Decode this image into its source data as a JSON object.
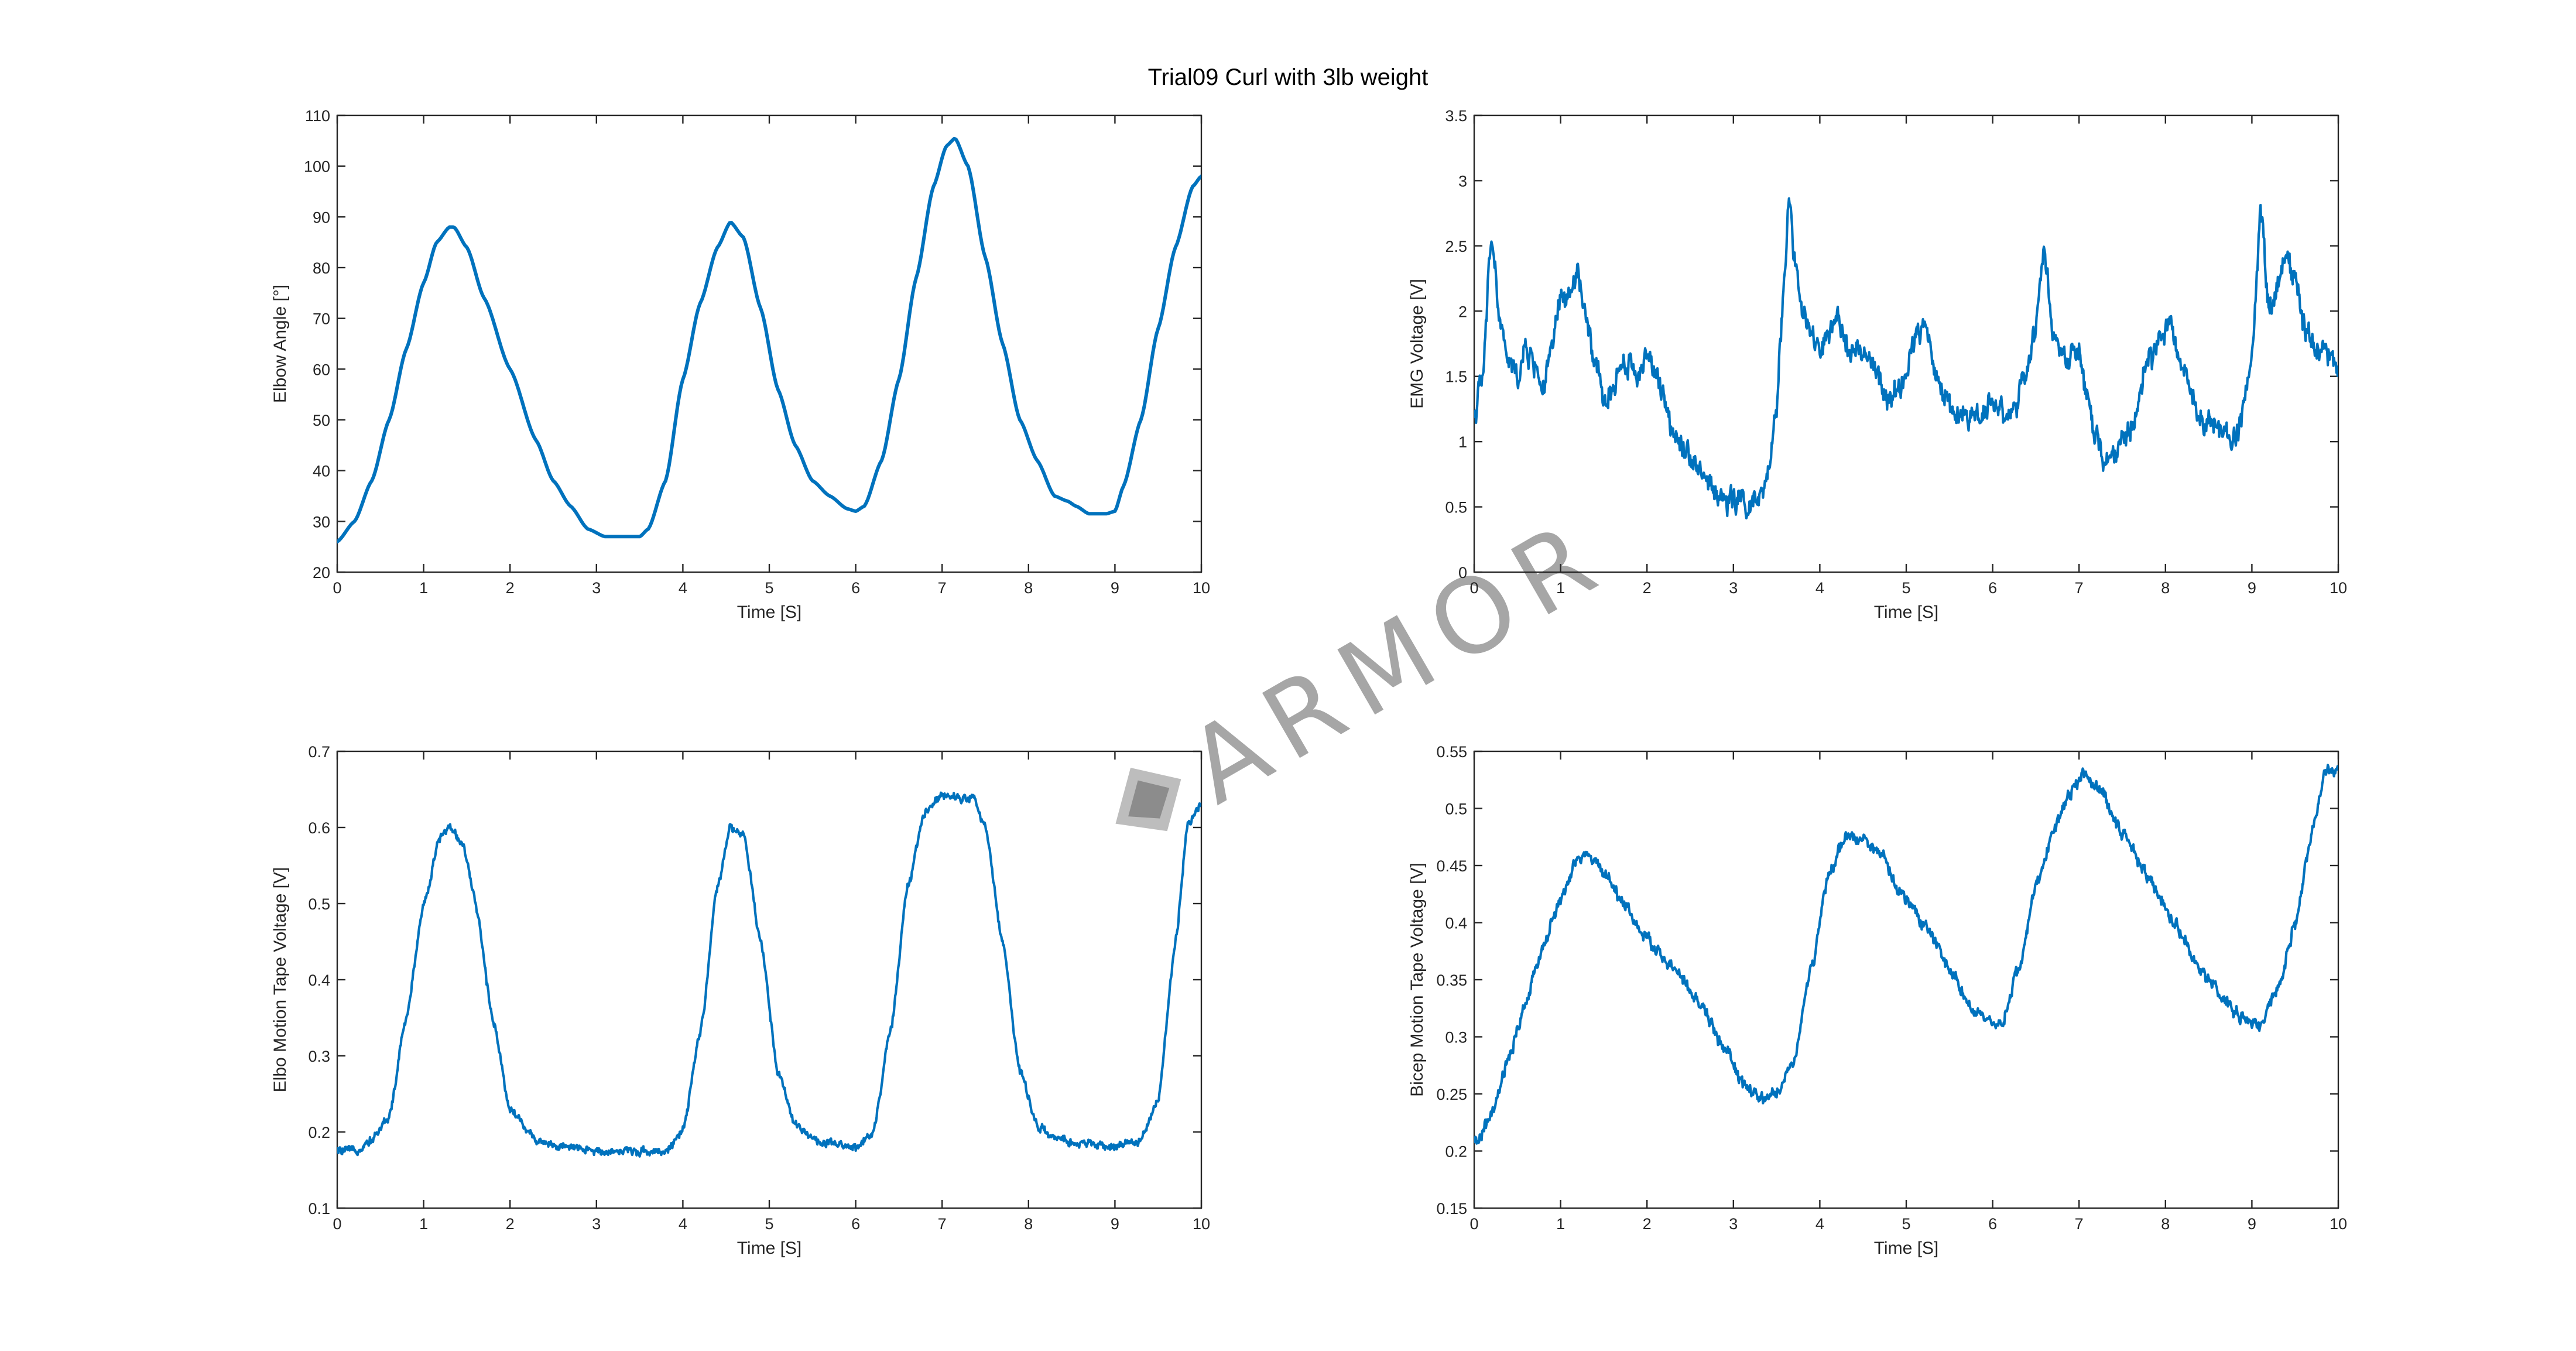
{
  "figure": {
    "title": "Trial09 Curl with 3lb weight",
    "watermark_text": "ARMOR",
    "line_color": "#0072bd",
    "axis_color": "#262626"
  },
  "chart_data": [
    {
      "type": "line",
      "xlabel": "Time [S]",
      "ylabel": "Elbow Angle [°]",
      "xlim": [
        0,
        10
      ],
      "ylim": [
        20,
        110
      ],
      "xticks": [
        0,
        1,
        2,
        3,
        4,
        5,
        6,
        7,
        8,
        9,
        10
      ],
      "yticks": [
        20,
        30,
        40,
        50,
        60,
        70,
        80,
        90,
        100,
        110
      ],
      "ytick_labels": [
        "20",
        "30",
        "40",
        "50",
        "60",
        "70",
        "80",
        "90",
        "100",
        "110"
      ],
      "noise": 0,
      "series": [
        {
          "x": [
            0,
            0.2,
            0.4,
            0.6,
            0.8,
            1.0,
            1.15,
            1.3,
            1.35,
            1.5,
            1.7,
            2.0,
            2.3,
            2.5,
            2.7,
            2.9,
            3.1,
            3.3,
            3.5,
            3.6,
            3.8,
            4.0,
            4.2,
            4.4,
            4.55,
            4.7,
            4.9,
            5.1,
            5.3,
            5.5,
            5.7,
            5.9,
            6.0,
            6.1,
            6.3,
            6.5,
            6.7,
            6.9,
            7.05,
            7.15,
            7.3,
            7.5,
            7.7,
            7.9,
            8.1,
            8.3,
            8.45,
            8.55,
            8.7,
            8.9,
            9.0,
            9.1,
            9.3,
            9.5,
            9.7,
            9.9,
            10.0
          ],
          "y": [
            26,
            30,
            38,
            50,
            64,
            77,
            85,
            88,
            88,
            84,
            74,
            60,
            46,
            38,
            33,
            28.5,
            27,
            27,
            27,
            28.5,
            38,
            58,
            73,
            84,
            89,
            86,
            72,
            56,
            45,
            38,
            35,
            32.5,
            32,
            33,
            42,
            58,
            78,
            96,
            104,
            105.5,
            100,
            82,
            65,
            50,
            42,
            35,
            34,
            33,
            31.5,
            31.5,
            32,
            37,
            50,
            68,
            84,
            96,
            98
          ]
        }
      ]
    },
    {
      "type": "line",
      "xlabel": "Time [S]",
      "ylabel": "EMG Voltage [V]",
      "xlim": [
        0,
        10
      ],
      "ylim": [
        0,
        3.5
      ],
      "xticks": [
        0,
        1,
        2,
        3,
        4,
        5,
        6,
        7,
        8,
        9,
        10
      ],
      "yticks": [
        0,
        0.5,
        1,
        1.5,
        2,
        2.5,
        3,
        3.5
      ],
      "ytick_labels": [
        "0",
        "0.5",
        "1",
        "1.5",
        "2",
        "2.5",
        "3",
        "3.5"
      ],
      "noise": 0.14,
      "series": [
        {
          "x": [
            0,
            0.1,
            0.2,
            0.3,
            0.4,
            0.5,
            0.6,
            0.7,
            0.8,
            0.9,
            1.0,
            1.1,
            1.2,
            1.3,
            1.4,
            1.5,
            1.6,
            1.7,
            1.8,
            1.9,
            2.0,
            2.1,
            2.2,
            2.3,
            2.4,
            2.5,
            2.6,
            2.7,
            2.8,
            2.9,
            3.0,
            3.1,
            3.2,
            3.3,
            3.4,
            3.5,
            3.6,
            3.65,
            3.7,
            3.8,
            3.9,
            4.0,
            4.2,
            4.4,
            4.6,
            4.8,
            5.0,
            5.1,
            5.2,
            5.4,
            5.6,
            5.8,
            6.0,
            6.2,
            6.4,
            6.5,
            6.6,
            6.7,
            6.8,
            6.9,
            7.0,
            7.1,
            7.2,
            7.3,
            7.4,
            7.6,
            7.8,
            8.0,
            8.2,
            8.4,
            8.6,
            8.8,
            9.0,
            9.1,
            9.2,
            9.4,
            9.5,
            9.6,
            9.8,
            10.0
          ],
          "y": [
            1.2,
            1.5,
            2.6,
            1.9,
            1.6,
            1.5,
            1.7,
            1.6,
            1.4,
            1.7,
            2.1,
            2.1,
            2.3,
            1.9,
            1.6,
            1.3,
            1.4,
            1.6,
            1.6,
            1.5,
            1.7,
            1.5,
            1.3,
            1.1,
            1.0,
            0.9,
            0.8,
            0.7,
            0.6,
            0.55,
            0.55,
            0.55,
            0.5,
            0.55,
            0.7,
            1.3,
            2.4,
            2.9,
            2.4,
            2.0,
            1.8,
            1.7,
            1.9,
            1.7,
            1.6,
            1.3,
            1.5,
            1.8,
            1.9,
            1.4,
            1.2,
            1.2,
            1.3,
            1.2,
            1.5,
            1.9,
            2.5,
            1.8,
            1.7,
            1.6,
            1.7,
            1.3,
            1.0,
            0.85,
            0.9,
            1.1,
            1.6,
            1.9,
            1.6,
            1.2,
            1.1,
            1.0,
            1.6,
            2.8,
            2.0,
            2.4,
            2.3,
            1.9,
            1.7,
            1.6
          ]
        }
      ]
    },
    {
      "type": "line",
      "xlabel": "Time [S]",
      "ylabel": "Elbo Motion Tape Voltage [V]",
      "xlim": [
        0,
        10
      ],
      "ylim": [
        0.1,
        0.7
      ],
      "xticks": [
        0,
        1,
        2,
        3,
        4,
        5,
        6,
        7,
        8,
        9,
        10
      ],
      "yticks": [
        0.1,
        0.2,
        0.3,
        0.4,
        0.5,
        0.6,
        0.7
      ],
      "ytick_labels": [
        "0.1",
        "0.2",
        "0.3",
        "0.4",
        "0.5",
        "0.6",
        "0.7"
      ],
      "noise": 0.008,
      "series": [
        {
          "x": [
            0,
            0.2,
            0.4,
            0.6,
            0.8,
            1.0,
            1.2,
            1.3,
            1.45,
            1.6,
            1.8,
            2.0,
            2.3,
            2.6,
            3.0,
            3.4,
            3.8,
            4.0,
            4.2,
            4.4,
            4.55,
            4.7,
            4.9,
            5.1,
            5.3,
            5.6,
            6.0,
            6.2,
            6.4,
            6.6,
            6.8,
            7.0,
            7.15,
            7.35,
            7.5,
            7.7,
            7.9,
            8.1,
            8.3,
            8.6,
            9.0,
            9.3,
            9.5,
            9.7,
            9.85,
            10.0
          ],
          "y": [
            0.175,
            0.175,
            0.19,
            0.22,
            0.35,
            0.5,
            0.59,
            0.6,
            0.58,
            0.5,
            0.35,
            0.23,
            0.19,
            0.18,
            0.175,
            0.175,
            0.175,
            0.2,
            0.33,
            0.52,
            0.6,
            0.59,
            0.45,
            0.28,
            0.21,
            0.185,
            0.18,
            0.2,
            0.33,
            0.52,
            0.62,
            0.645,
            0.64,
            0.64,
            0.6,
            0.45,
            0.28,
            0.21,
            0.19,
            0.185,
            0.18,
            0.19,
            0.24,
            0.45,
            0.61,
            0.63
          ]
        }
      ]
    },
    {
      "type": "line",
      "xlabel": "Time [S]",
      "ylabel": "Bicep Motion Tape Voltage [V]",
      "xlim": [
        0,
        10
      ],
      "ylim": [
        0.15,
        0.55
      ],
      "xticks": [
        0,
        1,
        2,
        3,
        4,
        5,
        6,
        7,
        8,
        9,
        10
      ],
      "yticks": [
        0.15,
        0.2,
        0.25,
        0.3,
        0.35,
        0.4,
        0.45,
        0.5,
        0.55
      ],
      "ytick_labels": [
        "0.15",
        "0.2",
        "0.25",
        "0.3",
        "0.35",
        "0.4",
        "0.45",
        "0.5",
        "0.55"
      ],
      "noise": 0.008,
      "series": [
        {
          "x": [
            0,
            0.2,
            0.4,
            0.6,
            0.8,
            1.0,
            1.2,
            1.3,
            1.5,
            1.7,
            2.0,
            2.3,
            2.6,
            2.9,
            3.1,
            3.3,
            3.5,
            3.7,
            3.9,
            4.1,
            4.3,
            4.5,
            4.7,
            4.9,
            5.2,
            5.5,
            5.8,
            6.0,
            6.1,
            6.3,
            6.5,
            6.7,
            6.9,
            7.05,
            7.2,
            7.5,
            7.8,
            8.1,
            8.4,
            8.7,
            8.9,
            9.1,
            9.3,
            9.5,
            9.7,
            9.85,
            10.0
          ],
          "y": [
            0.205,
            0.23,
            0.28,
            0.33,
            0.38,
            0.42,
            0.455,
            0.46,
            0.445,
            0.42,
            0.385,
            0.36,
            0.33,
            0.29,
            0.26,
            0.245,
            0.25,
            0.28,
            0.36,
            0.44,
            0.475,
            0.475,
            0.46,
            0.43,
            0.4,
            0.36,
            0.32,
            0.31,
            0.31,
            0.36,
            0.43,
            0.48,
            0.515,
            0.53,
            0.52,
            0.48,
            0.44,
            0.4,
            0.36,
            0.33,
            0.315,
            0.31,
            0.34,
            0.4,
            0.48,
            0.53,
            0.535
          ]
        }
      ]
    }
  ]
}
